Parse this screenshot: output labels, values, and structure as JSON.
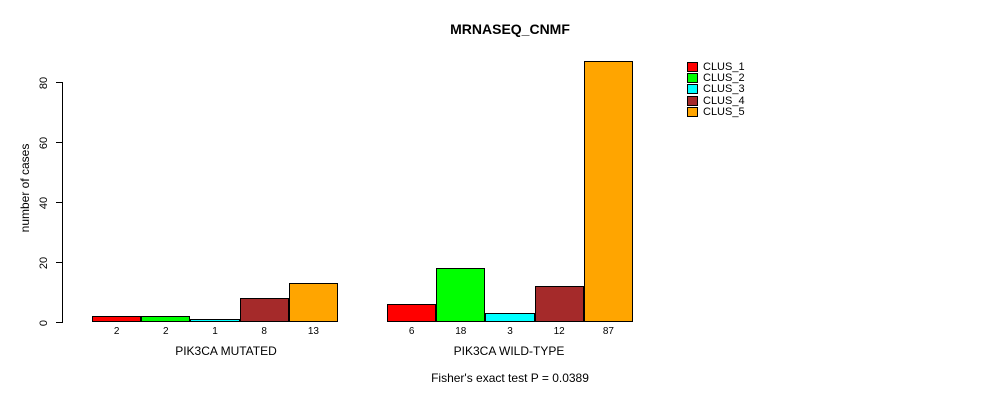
{
  "chart_data": {
    "type": "bar",
    "title": "MRNASEQ_CNMF",
    "ylabel": "number of cases",
    "xlabel": "",
    "yticks": [
      0,
      20,
      40,
      60,
      80
    ],
    "ylim": [
      0,
      87
    ],
    "grid": false,
    "legend_position": "right",
    "bar_value_labels_shown": true,
    "categories": [
      "PIK3CA MUTATED",
      "PIK3CA WILD-TYPE"
    ],
    "series": [
      {
        "name": "CLUS_1",
        "color": "#FF0000",
        "values": [
          2,
          6
        ]
      },
      {
        "name": "CLUS_2",
        "color": "#00FF00",
        "values": [
          2,
          18
        ]
      },
      {
        "name": "CLUS_3",
        "color": "#00FFFF",
        "values": [
          1,
          3
        ]
      },
      {
        "name": "CLUS_4",
        "color": "#A52A2A",
        "values": [
          8,
          12
        ]
      },
      {
        "name": "CLUS_5",
        "color": "#FFA500",
        "values": [
          13,
          87
        ]
      }
    ],
    "footer": "Fisher's exact test P = 0.0389"
  }
}
